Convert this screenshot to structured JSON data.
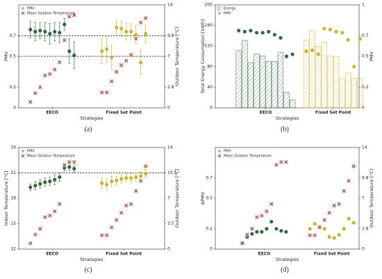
{
  "chart_data": [
    {
      "type": "scatter",
      "caption": "(a)",
      "ylabel": "PMV",
      "y2label": "Outdoor Temperature [°C]",
      "xlabel": "Strategies",
      "groups": [
        "EECO",
        "Fixed Set Point"
      ],
      "ylim": [
        0,
        1
      ],
      "yticks": [
        0,
        0.2,
        0.5,
        0.7
      ],
      "y2lim": [
        0,
        14
      ],
      "y2ticks": [
        0,
        2.8,
        7,
        9.8,
        14
      ],
      "hlines": [
        0.7,
        0.5
      ],
      "legend": "upper left",
      "series": [
        {
          "name": "PMV",
          "mark": "dot",
          "colors": [
            "#2f6b3a",
            "#c9b42a"
          ],
          "values": [
            [
              0.76,
              0.74,
              0.75,
              0.74,
              0.72,
              0.74,
              0.73,
              0.81,
              0.55,
              0.51
            ],
            [
              0.55,
              0.57,
              0.49,
              0.78,
              0.77,
              0.74,
              0.74,
              0.71,
              0.44,
              0.72
            ]
          ],
          "errors": [
            [
              0.08,
              0.09,
              0.08,
              0.09,
              0.1,
              0.09,
              0.1,
              0.06,
              0.12,
              0.13
            ],
            [
              0.12,
              0.13,
              0.12,
              0.07,
              0.08,
              0.08,
              0.08,
              0.09,
              0.12,
              0.09
            ]
          ]
        },
        {
          "name": "Mean Outdoor Temperature",
          "mark": "cross",
          "axis": "y2",
          "color": "#8b3a2e",
          "values": [
            [
              0.8,
              2.0,
              2.8,
              4.4,
              4.6,
              5.2,
              6.2,
              9.2,
              12.4,
              12.6
            ],
            [
              2.1,
              2.1,
              3.6,
              4.9,
              5.8,
              6.4,
              7.2,
              9.4,
              11.6,
              12.2
            ]
          ]
        }
      ]
    },
    {
      "type": "bar",
      "caption": "(b)",
      "ylabel": "Total Energy Consumption [kWh]",
      "y2label": "PMV",
      "xlabel": "Strategies",
      "groups": [
        "EECO",
        "Fixed Set Point"
      ],
      "ylim": [
        0,
        200
      ],
      "yticks": [
        0,
        40,
        80,
        120,
        160,
        200
      ],
      "y2lim": [
        0,
        1
      ],
      "y2ticks": [
        0,
        0.2,
        0.5,
        0.7,
        1
      ],
      "hlines": [],
      "legend": "upper left",
      "series": [
        {
          "name": "Energy",
          "mark": "bar",
          "colors": [
            "#2f6b3a",
            "#d9b43a"
          ],
          "values": [
            [
              111,
              131,
              88,
              105,
              101,
              90,
              90,
              108,
              30,
              16
            ],
            [
              132,
              151,
              120,
              128,
              101,
              99,
              57,
              68,
              58,
              58
            ]
          ]
        },
        {
          "name": "PMV",
          "mark": "dot",
          "axis": "y2",
          "colors": [
            "#2f6b3a",
            "#c9b42a"
          ],
          "values": [
            [
              0.75,
              0.74,
              0.75,
              0.73,
              0.73,
              0.74,
              0.71,
              0.68,
              0.5,
              0.52
            ],
            [
              0.55,
              0.56,
              0.52,
              0.77,
              0.76,
              0.74,
              0.73,
              0.66,
              0.4,
              0.67
            ]
          ]
        }
      ]
    },
    {
      "type": "scatter",
      "caption": "(c)",
      "ylabel": "Indoor Temperature [°C]",
      "y2label": "Outdoor Temperature [°C]",
      "xlabel": "Strategies",
      "groups": [
        "EECO",
        "Fixed Set Point"
      ],
      "ylim": [
        12,
        24
      ],
      "yticks": [
        12,
        15,
        18,
        21,
        24
      ],
      "y2lim": [
        0,
        14
      ],
      "y2ticks": [
        0,
        3.5,
        7,
        10.5,
        14
      ],
      "hlines": [
        21
      ],
      "legend": "upper left",
      "series": [
        {
          "name": "PMV",
          "mark": "dot",
          "colors": [
            "#2f6b3a",
            "#c9b42a"
          ],
          "values": [
            [
              19.3,
              19.5,
              19.7,
              19.9,
              20.0,
              20.2,
              20.5,
              21.6,
              21.7,
              21.5
            ],
            [
              19.8,
              19.6,
              20.0,
              20.1,
              20.3,
              20.4,
              20.4,
              20.5,
              20.6,
              20.9
            ]
          ],
          "errors": [
            [
              0.4,
              0.5,
              0.5,
              0.5,
              0.5,
              0.6,
              0.5,
              0.4,
              0.4,
              0.4
            ],
            [
              0.6,
              0.7,
              0.6,
              0.5,
              0.5,
              0.5,
              0.5,
              0.5,
              0.5,
              0.5
            ]
          ]
        },
        {
          "name": "Mean Outdoor Temperature",
          "mark": "cross",
          "axis": "y2",
          "color": "#8b3a2e",
          "values": [
            [
              0.8,
              2.0,
              2.8,
              4.4,
              4.6,
              5.2,
              6.2,
              11.6,
              12.0,
              12.0
            ],
            [
              1.9,
              1.9,
              3.0,
              4.0,
              5.0,
              6.0,
              6.2,
              8.0,
              9.4,
              11.4
            ]
          ]
        }
      ]
    },
    {
      "type": "scatter",
      "caption": "(d)",
      "ylabel": "ΔPMV",
      "y2label": "Outdoor Temperature [°C]",
      "xlabel": "Strategies",
      "groups": [
        "EECO",
        "Fixed Set Point"
      ],
      "ylim": [
        0,
        1
      ],
      "yticks": [
        0,
        0.2,
        0.5,
        0.7
      ],
      "y2lim": [
        0,
        14
      ],
      "y2ticks": [
        0,
        2.8,
        7,
        9.8,
        14
      ],
      "hlines": [],
      "legend": "upper left",
      "series": [
        {
          "name": "PMV",
          "mark": "dot",
          "colors": [
            "#2f6b3a",
            "#c9b42a"
          ],
          "values": [
            [
              0.06,
              0.12,
              0.15,
              0.17,
              0.17,
              0.2,
              0.27,
              0.2,
              0.18,
              0.17
            ],
            [
              0.2,
              0.25,
              0.22,
              0.2,
              0.12,
              0.11,
              0.14,
              0.2,
              0.3,
              0.26
            ]
          ]
        },
        {
          "name": "Mean Outdoor Temperature",
          "mark": "cross",
          "axis": "y2",
          "color": "#8b3a2e",
          "values": [
            [
              0.8,
              2.0,
              2.8,
              4.4,
              4.6,
              5.2,
              6.2,
              11.6,
              12.0,
              12.0
            ],
            [
              1.9,
              1.9,
              3.0,
              4.0,
              5.0,
              6.0,
              6.2,
              8.0,
              9.4,
              11.4
            ]
          ]
        }
      ]
    }
  ]
}
